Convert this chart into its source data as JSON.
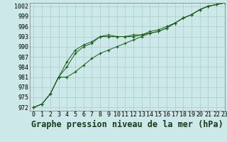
{
  "xlabel": "Graphe pression niveau de la mer (hPa)",
  "background_color": "#cce8e8",
  "grid_color": "#aacccc",
  "line_color": "#1a5c1a",
  "marker": "+",
  "xlim": [
    -0.5,
    23
  ],
  "ylim": [
    971,
    1003
  ],
  "xticks": [
    0,
    1,
    2,
    3,
    4,
    5,
    6,
    7,
    8,
    9,
    10,
    11,
    12,
    13,
    14,
    15,
    16,
    17,
    18,
    19,
    20,
    21,
    22,
    23
  ],
  "yticks": [
    972,
    975,
    978,
    981,
    984,
    987,
    990,
    993,
    996,
    999,
    1002
  ],
  "series": [
    [
      972,
      973,
      976,
      981,
      984,
      988,
      990,
      991,
      993,
      993.5,
      993,
      993,
      993.5,
      993.5,
      994,
      994.5,
      995.5,
      997,
      998.5,
      999.5,
      1001,
      1002,
      1002.5,
      1003
    ],
    [
      972,
      973,
      976,
      981,
      985.5,
      989,
      990.5,
      991.5,
      993,
      993,
      993,
      993,
      993,
      993.5,
      994.5,
      995,
      996,
      997,
      998.5,
      999.5,
      1001,
      1002,
      1002.5,
      1003
    ],
    [
      972,
      973,
      976,
      981,
      981,
      982.5,
      984.5,
      986.5,
      988,
      989,
      990,
      991,
      992,
      993,
      994,
      994.5,
      995.5,
      997,
      998.5,
      999.5,
      1001,
      1002,
      1002.5,
      1003
    ]
  ],
  "tick_fontsize": 6,
  "xlabel_fontsize": 8.5
}
